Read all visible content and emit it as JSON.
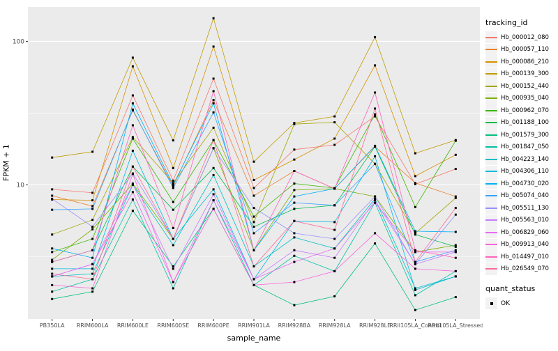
{
  "figure": {
    "y_axis": {
      "title": "FPKM + 1",
      "tick_labels": [
        "100",
        "10"
      ],
      "tick_log_values": [
        2,
        1
      ],
      "minor_log_values": [
        0.5,
        1.5
      ],
      "log_limits": [
        0.065,
        2.24
      ]
    },
    "x_axis": {
      "title": "sample_name"
    },
    "legend": {
      "tracking_title": "tracking_id",
      "quant_title": "quant_status",
      "quant_items": [
        {
          "label": "OK",
          "marker": "filled-black-square"
        }
      ]
    },
    "colors": {
      "panel_bg": "#EBEBEB",
      "grid_major": "#FFFFFF",
      "grid_minor": "#FFFFFF",
      "tick_text": "#4D4D4D",
      "tick_mark": "#333333",
      "axis_title": "#000000",
      "point": "#000000",
      "legend_key_bg": "#F2F2F2"
    }
  },
  "chart_data": {
    "type": "line",
    "title": "",
    "xlabel": "sample_name",
    "ylabel": "FPKM + 1",
    "y_scale": "log10",
    "ylim": [
      1.16,
      174
    ],
    "y_major_ticks": [
      10,
      100
    ],
    "grid": true,
    "legend_position": "right",
    "point_shape": "filled-square-black",
    "quant_status": "OK",
    "categories": [
      "PB350LA",
      "RRIM600LA",
      "RRIM600LE",
      "RRIM600SE",
      "RRIM600PE",
      "RRIM901LA",
      "RRIM928BA",
      "RRIM928LA",
      "RRIM928LE",
      "RRII105LA_Control",
      "RRII105LA_Stressed"
    ],
    "series": [
      {
        "name": "Hb_000012_080",
        "color": "#F8766D",
        "values": [
          9.3,
          8.8,
          42,
          10.7,
          55,
          9.5,
          17.6,
          19,
          30,
          10.1,
          12.9
        ]
      },
      {
        "name": "Hb_000057_110",
        "color": "#EA8331",
        "values": [
          8.4,
          7.1,
          33,
          9.8,
          39,
          8.4,
          12.5,
          9.4,
          18.5,
          10.3,
          8.3
        ]
      },
      {
        "name": "Hb_000086_210",
        "color": "#D89000",
        "values": [
          7.9,
          7.8,
          67,
          13.1,
          92,
          10.8,
          15,
          21,
          68,
          11.5,
          16.2
        ]
      },
      {
        "name": "Hb_000139_300",
        "color": "#C09B00",
        "values": [
          15.5,
          17,
          77,
          20.4,
          145,
          14.5,
          27,
          30,
          107,
          16.6,
          20.5
        ]
      },
      {
        "name": "Hb_000152_440",
        "color": "#A3A500",
        "values": [
          4.5,
          5.7,
          21.5,
          10.3,
          25,
          5.5,
          26.5,
          27.3,
          14,
          4.6,
          8.1
        ]
      },
      {
        "name": "Hb_000935_040",
        "color": "#7CAE00",
        "values": [
          3.0,
          4.9,
          10.2,
          4.2,
          18,
          3.5,
          9.2,
          9.4,
          8.3,
          3.4,
          3.8
        ]
      },
      {
        "name": "Hb_000962_070",
        "color": "#39B600",
        "values": [
          3.4,
          4.2,
          21,
          7.6,
          20.5,
          6.0,
          10.2,
          9.5,
          31,
          7.0,
          20.3
        ]
      },
      {
        "name": "Hb_001188_100",
        "color": "#00BB4E",
        "values": [
          2.9,
          3.5,
          13.4,
          6.7,
          13.1,
          5.1,
          6.8,
          7.2,
          18.5,
          4.5,
          3.7
        ]
      },
      {
        "name": "Hb_001579_300",
        "color": "#00BF7D",
        "values": [
          1.6,
          1.8,
          6.6,
          2.7,
          6.8,
          2.0,
          1.45,
          1.67,
          3.9,
          1.34,
          1.65
        ]
      },
      {
        "name": "Hb_001847_050",
        "color": "#00C1A3",
        "values": [
          1.8,
          2.2,
          7.9,
          1.9,
          7.8,
          2.0,
          3.2,
          2.5,
          7.5,
          1.7,
          2.5
        ]
      },
      {
        "name": "Hb_004223_140",
        "color": "#00BFC4",
        "values": [
          2.3,
          2.4,
          10,
          3.8,
          11.7,
          2.7,
          4.3,
          3.6,
          8.0,
          1.9,
          2.3
        ]
      },
      {
        "name": "Hb_004306_110",
        "color": "#00BAE0",
        "values": [
          2.6,
          2.6,
          17.3,
          4.2,
          9.3,
          2.2,
          5.6,
          5.5,
          15.8,
          1.85,
          2.3
        ]
      },
      {
        "name": "Hb_004730_020",
        "color": "#00B0F6",
        "values": [
          3.6,
          3.1,
          37,
          10,
          37,
          3.5,
          8.3,
          9.4,
          18.7,
          4.75,
          4.7
        ]
      },
      {
        "name": "Hb_005074_040",
        "color": "#35A2FF",
        "values": [
          6.7,
          6.8,
          33.5,
          9.5,
          32,
          4.6,
          7.5,
          7.2,
          14,
          2.9,
          3.5
        ]
      },
      {
        "name": "Hb_005511_130",
        "color": "#9590FF",
        "values": [
          8.0,
          5.1,
          12,
          4.2,
          18,
          6.9,
          4.6,
          4.2,
          8.3,
          2.8,
          6.2
        ]
      },
      {
        "name": "Hb_005563_010",
        "color": "#C77CFF",
        "values": [
          2.3,
          2.8,
          10.1,
          2.6,
          8.6,
          2.2,
          3.5,
          3.1,
          7.8,
          2.8,
          3.4
        ]
      },
      {
        "name": "Hb_006829_060",
        "color": "#E76BF3",
        "values": [
          2.3,
          2.8,
          8.9,
          2.1,
          7.8,
          2.2,
          2.9,
          3.6,
          7.5,
          3.4,
          3.4
        ]
      },
      {
        "name": "Hb_009913_040",
        "color": "#FA62DB",
        "values": [
          2.0,
          1.9,
          11.9,
          2.1,
          6.8,
          2.0,
          2.1,
          2.5,
          4.6,
          2.6,
          2.5
        ]
      },
      {
        "name": "Hb_014497_010",
        "color": "#FF62BC",
        "values": [
          2.9,
          3.5,
          26,
          5.0,
          45,
          3.5,
          12.5,
          9.4,
          44,
          3.5,
          3.1
        ]
      },
      {
        "name": "Hb_026549_070",
        "color": "#FF6A98",
        "values": [
          2.4,
          2.2,
          13.4,
          4.2,
          20.5,
          2.7,
          5.6,
          4.85,
          34,
          2.9,
          6.9
        ]
      }
    ]
  }
}
